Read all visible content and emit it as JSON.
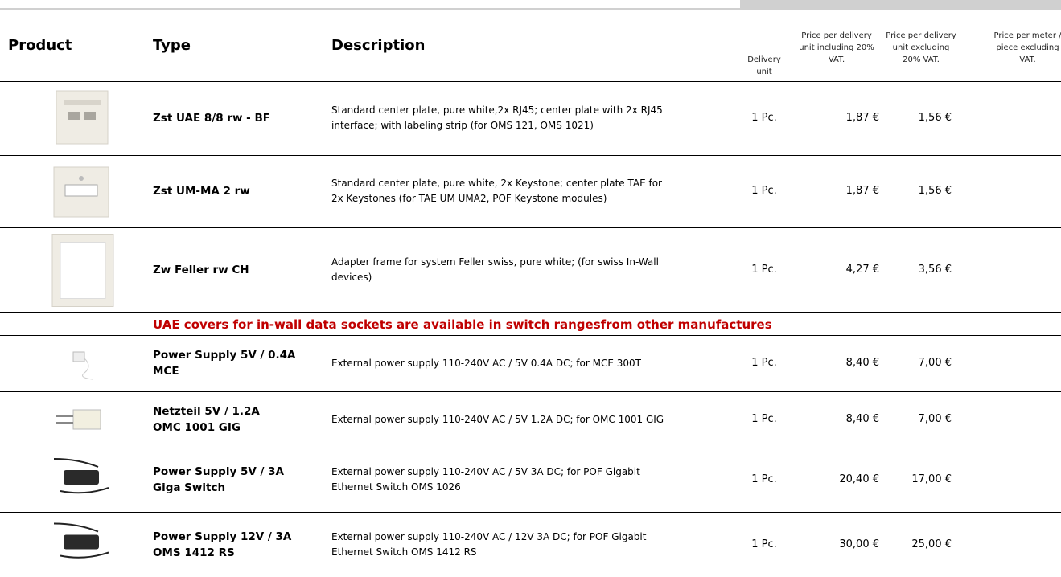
{
  "table": {
    "columns": {
      "product": "Product",
      "type": "Type",
      "description": "Description",
      "delivery_unit": "Delivery\nunit",
      "price_incl": "Price per delivery\nunit including 20%\nVAT.",
      "price_excl": "Price per delivery\nunit excluding\n20% VAT.",
      "price_meter": "Price per meter /\npiece excluding\nVAT."
    },
    "rows": [
      {
        "type": "Zst UAE 8/8 rw - BF",
        "description": "Standard center plate, pure white,2x RJ45; center plate with 2x RJ45\ninterface; with labeling strip (for OMS 121, OMS 1021)",
        "unit": "1 Pc.",
        "price_incl": "1,87 €",
        "price_excl": "1,56 €"
      },
      {
        "type": "Zst UM-MA 2 rw",
        "description": "Standard center plate, pure white, 2x Keystone; center plate TAE for\n2x Keystones (for TAE UM UMA2, POF Keystone modules)",
        "unit": "1 Pc.",
        "price_incl": "1,87 €",
        "price_excl": "1,56 €"
      },
      {
        "type": "Zw Feller rw CH",
        "description": "Adapter frame for system Feller swiss, pure white; (for swiss In-Wall\ndevices)",
        "unit": "1 Pc.",
        "price_incl": "4,27 €",
        "price_excl": "3,56 €"
      },
      {
        "type": "Power Supply  5V / 0.4A\nMCE",
        "description": "External power supply 110-240V AC / 5V 0.4A DC; for MCE 300T",
        "unit": "1 Pc.",
        "price_incl": "8,40 €",
        "price_excl": "7,00 €"
      },
      {
        "type": "Netzteil 5V / 1.2A\nOMC 1001 GIG",
        "description": "External power supply 110-240V AC / 5V 1.2A DC; for OMC 1001 GIG",
        "unit": "1 Pc.",
        "price_incl": "8,40 €",
        "price_excl": "7,00 €"
      },
      {
        "type": "Power Supply 5V / 3A\nGiga Switch",
        "description": "External power supply 110-240V AC / 5V 3A DC; for POF Gigabit\nEthernet Switch OMS 1026",
        "unit": "1 Pc.",
        "price_incl": "20,40 €",
        "price_excl": "17,00 €"
      },
      {
        "type": "Power Supply 12V / 3A\nOMS 1412 RS",
        "description": "External power supply 110-240V AC / 12V 3A DC; for POF Gigabit\nEthernet Switch OMS 1412 RS",
        "unit": "1 Pc.",
        "price_incl": "30,00 €",
        "price_excl": "25,00 €"
      }
    ],
    "note": "UAE covers for in-wall data sockets are available in switch rangesfrom other manufactures"
  }
}
